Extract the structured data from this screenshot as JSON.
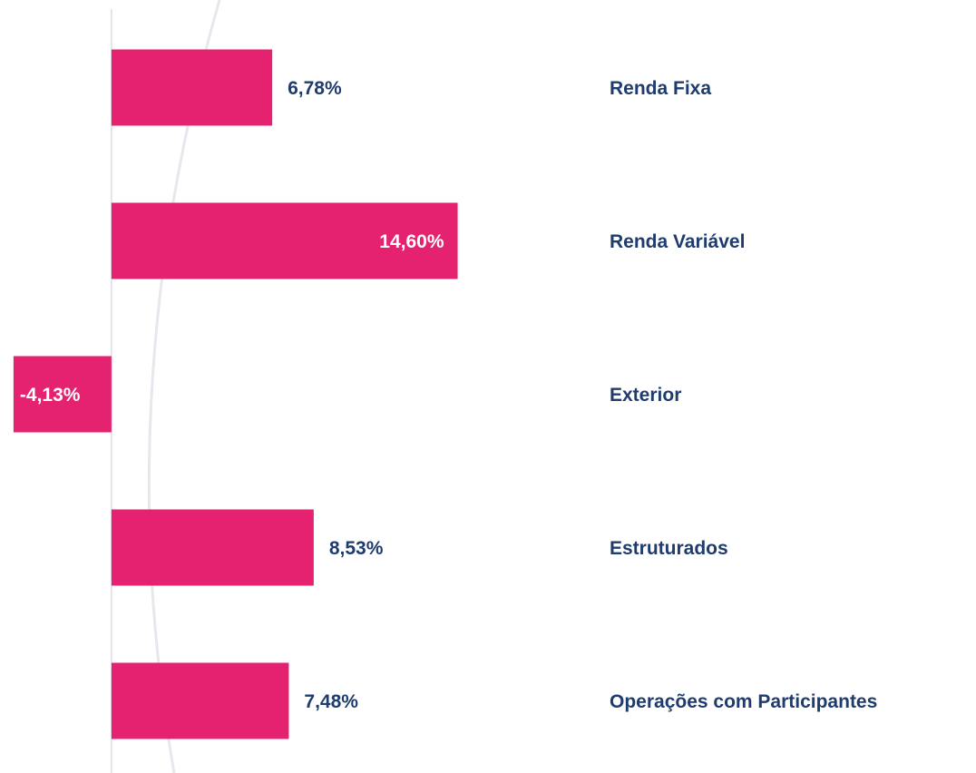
{
  "chart_data": {
    "type": "barh",
    "categories": [
      "Renda Fixa",
      "Renda Variável",
      "Exterior",
      "Estruturados",
      "Operações com Participantes"
    ],
    "values": [
      6.78,
      14.6,
      -4.13,
      8.53,
      7.48
    ],
    "value_labels": [
      "6,78%",
      "14,60%",
      "-4,13%",
      "8,53%",
      "7,48%"
    ],
    "color": "#e5226f",
    "xlim": [
      -4.7,
      15
    ]
  }
}
